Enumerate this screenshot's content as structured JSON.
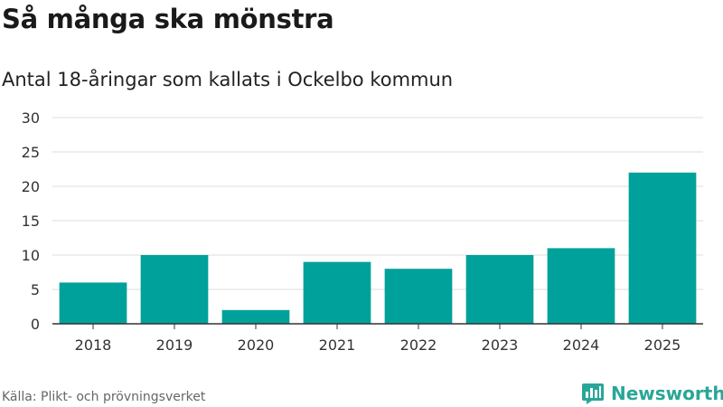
{
  "header": {
    "title": "Så många ska mönstra",
    "subtitle": "Antal 18-åringar som kallats i Ockelbo kommun"
  },
  "footer": {
    "source": "Källa: Plikt- och prövningsverket",
    "brand": "Newsworthy"
  },
  "colors": {
    "bar": "#00a19a",
    "grid": "#dddddd",
    "axis": "#333333",
    "brand": "#2aa698"
  },
  "chart_data": {
    "type": "bar",
    "categories": [
      "2018",
      "2019",
      "2020",
      "2021",
      "2022",
      "2023",
      "2024",
      "2025"
    ],
    "values": [
      6,
      10,
      2,
      9,
      8,
      10,
      11,
      22
    ],
    "ylim": [
      0,
      30
    ],
    "yticks": [
      0,
      5,
      10,
      15,
      20,
      25,
      30
    ],
    "grid": true,
    "legend": "none"
  }
}
